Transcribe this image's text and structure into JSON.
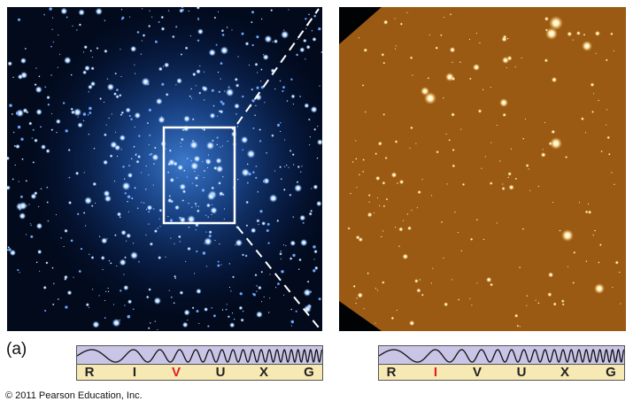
{
  "figure": {
    "part_label": "(a)",
    "copyright": "© 2011 Pearson Education, Inc."
  },
  "colors": {
    "left_background": "#020a1c",
    "left_star": "#8fc4ff",
    "right_background": "#9a5a14",
    "right_star": "#fff4c8",
    "highlight_band": "#e0201c",
    "normal_band": "#222222",
    "wave_bg": "#c9c5e6",
    "band_bg": "#f7e9b4"
  },
  "spectrum_left": {
    "bands": [
      "R",
      "I",
      "V",
      "U",
      "X",
      "G"
    ],
    "highlighted": "V"
  },
  "spectrum_right": {
    "bands": [
      "R",
      "I",
      "V",
      "U",
      "X",
      "G"
    ],
    "highlighted": "I"
  }
}
